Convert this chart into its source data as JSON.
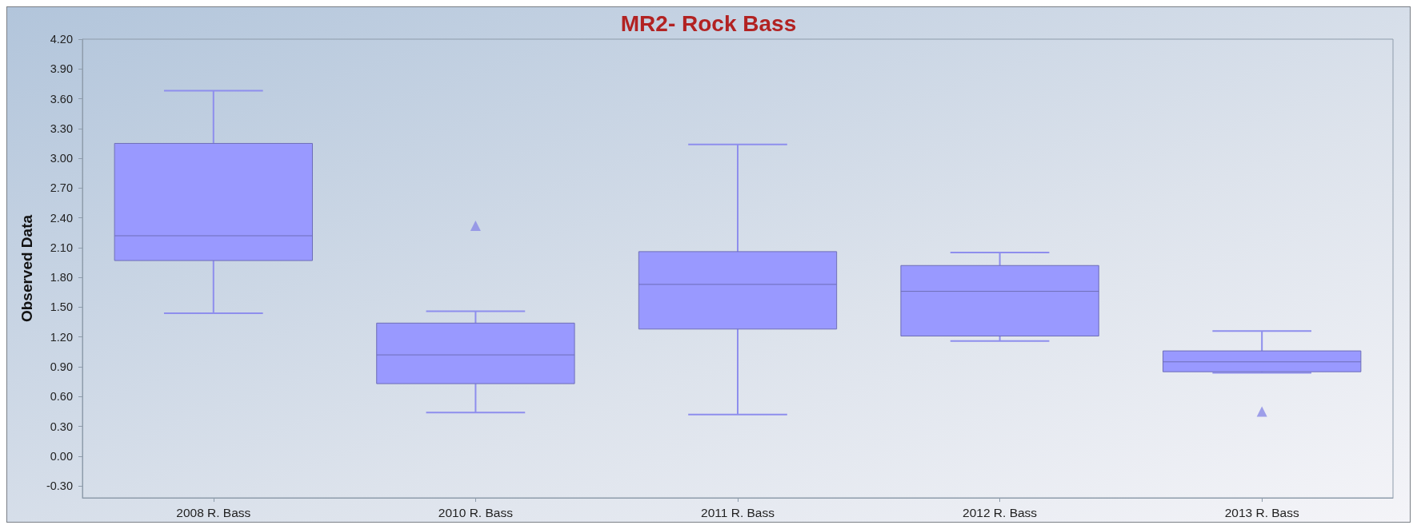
{
  "chart_data": {
    "type": "box",
    "title": "MR2- Rock Bass",
    "ylabel": "Observed Data",
    "categories": [
      "2008 R. Bass",
      "2010 R. Bass",
      "2011 R. Bass",
      "2012 R. Bass",
      "2013 R. Bass"
    ],
    "boxes": [
      {
        "low": 1.44,
        "q1": 1.97,
        "median": 2.22,
        "q3": 3.15,
        "high": 3.68
      },
      {
        "low": 0.44,
        "q1": 0.73,
        "median": 1.02,
        "q3": 1.34,
        "high": 1.46,
        "outliers": [
          2.32
        ]
      },
      {
        "low": 0.42,
        "q1": 1.28,
        "median": 1.73,
        "q3": 2.06,
        "high": 3.14
      },
      {
        "low": 1.16,
        "q1": 1.21,
        "median": 1.66,
        "q3": 1.92,
        "high": 2.05
      },
      {
        "low": 0.84,
        "q1": 0.85,
        "median": 0.95,
        "q3": 1.06,
        "high": 1.26,
        "outliers": [
          0.45
        ]
      }
    ],
    "color": "#9999ff",
    "marker": "triangle",
    "ylim": [
      -0.42,
      4.2
    ],
    "yticks": [
      {
        "value": -0.3,
        "label": "-0.30"
      },
      {
        "value": 0,
        "label": "0.00"
      },
      {
        "value": 0.3,
        "label": "0.30"
      },
      {
        "value": 0.6,
        "label": "0.60"
      },
      {
        "value": 0.9,
        "label": "0.90"
      },
      {
        "value": 1.2,
        "label": "1.20"
      },
      {
        "value": 1.5,
        "label": "1.50"
      },
      {
        "value": 1.8,
        "label": "1.80"
      },
      {
        "value": 2.1,
        "label": "2.10"
      },
      {
        "value": 2.4,
        "label": "2.40"
      },
      {
        "value": 2.7,
        "label": "2.70"
      },
      {
        "value": 3.0,
        "label": "3.00"
      },
      {
        "value": 3.3,
        "label": "3.30"
      },
      {
        "value": 3.6,
        "label": "3.60"
      },
      {
        "value": 3.9,
        "label": "3.90"
      },
      {
        "value": 4.2,
        "label": "4.20"
      }
    ]
  }
}
